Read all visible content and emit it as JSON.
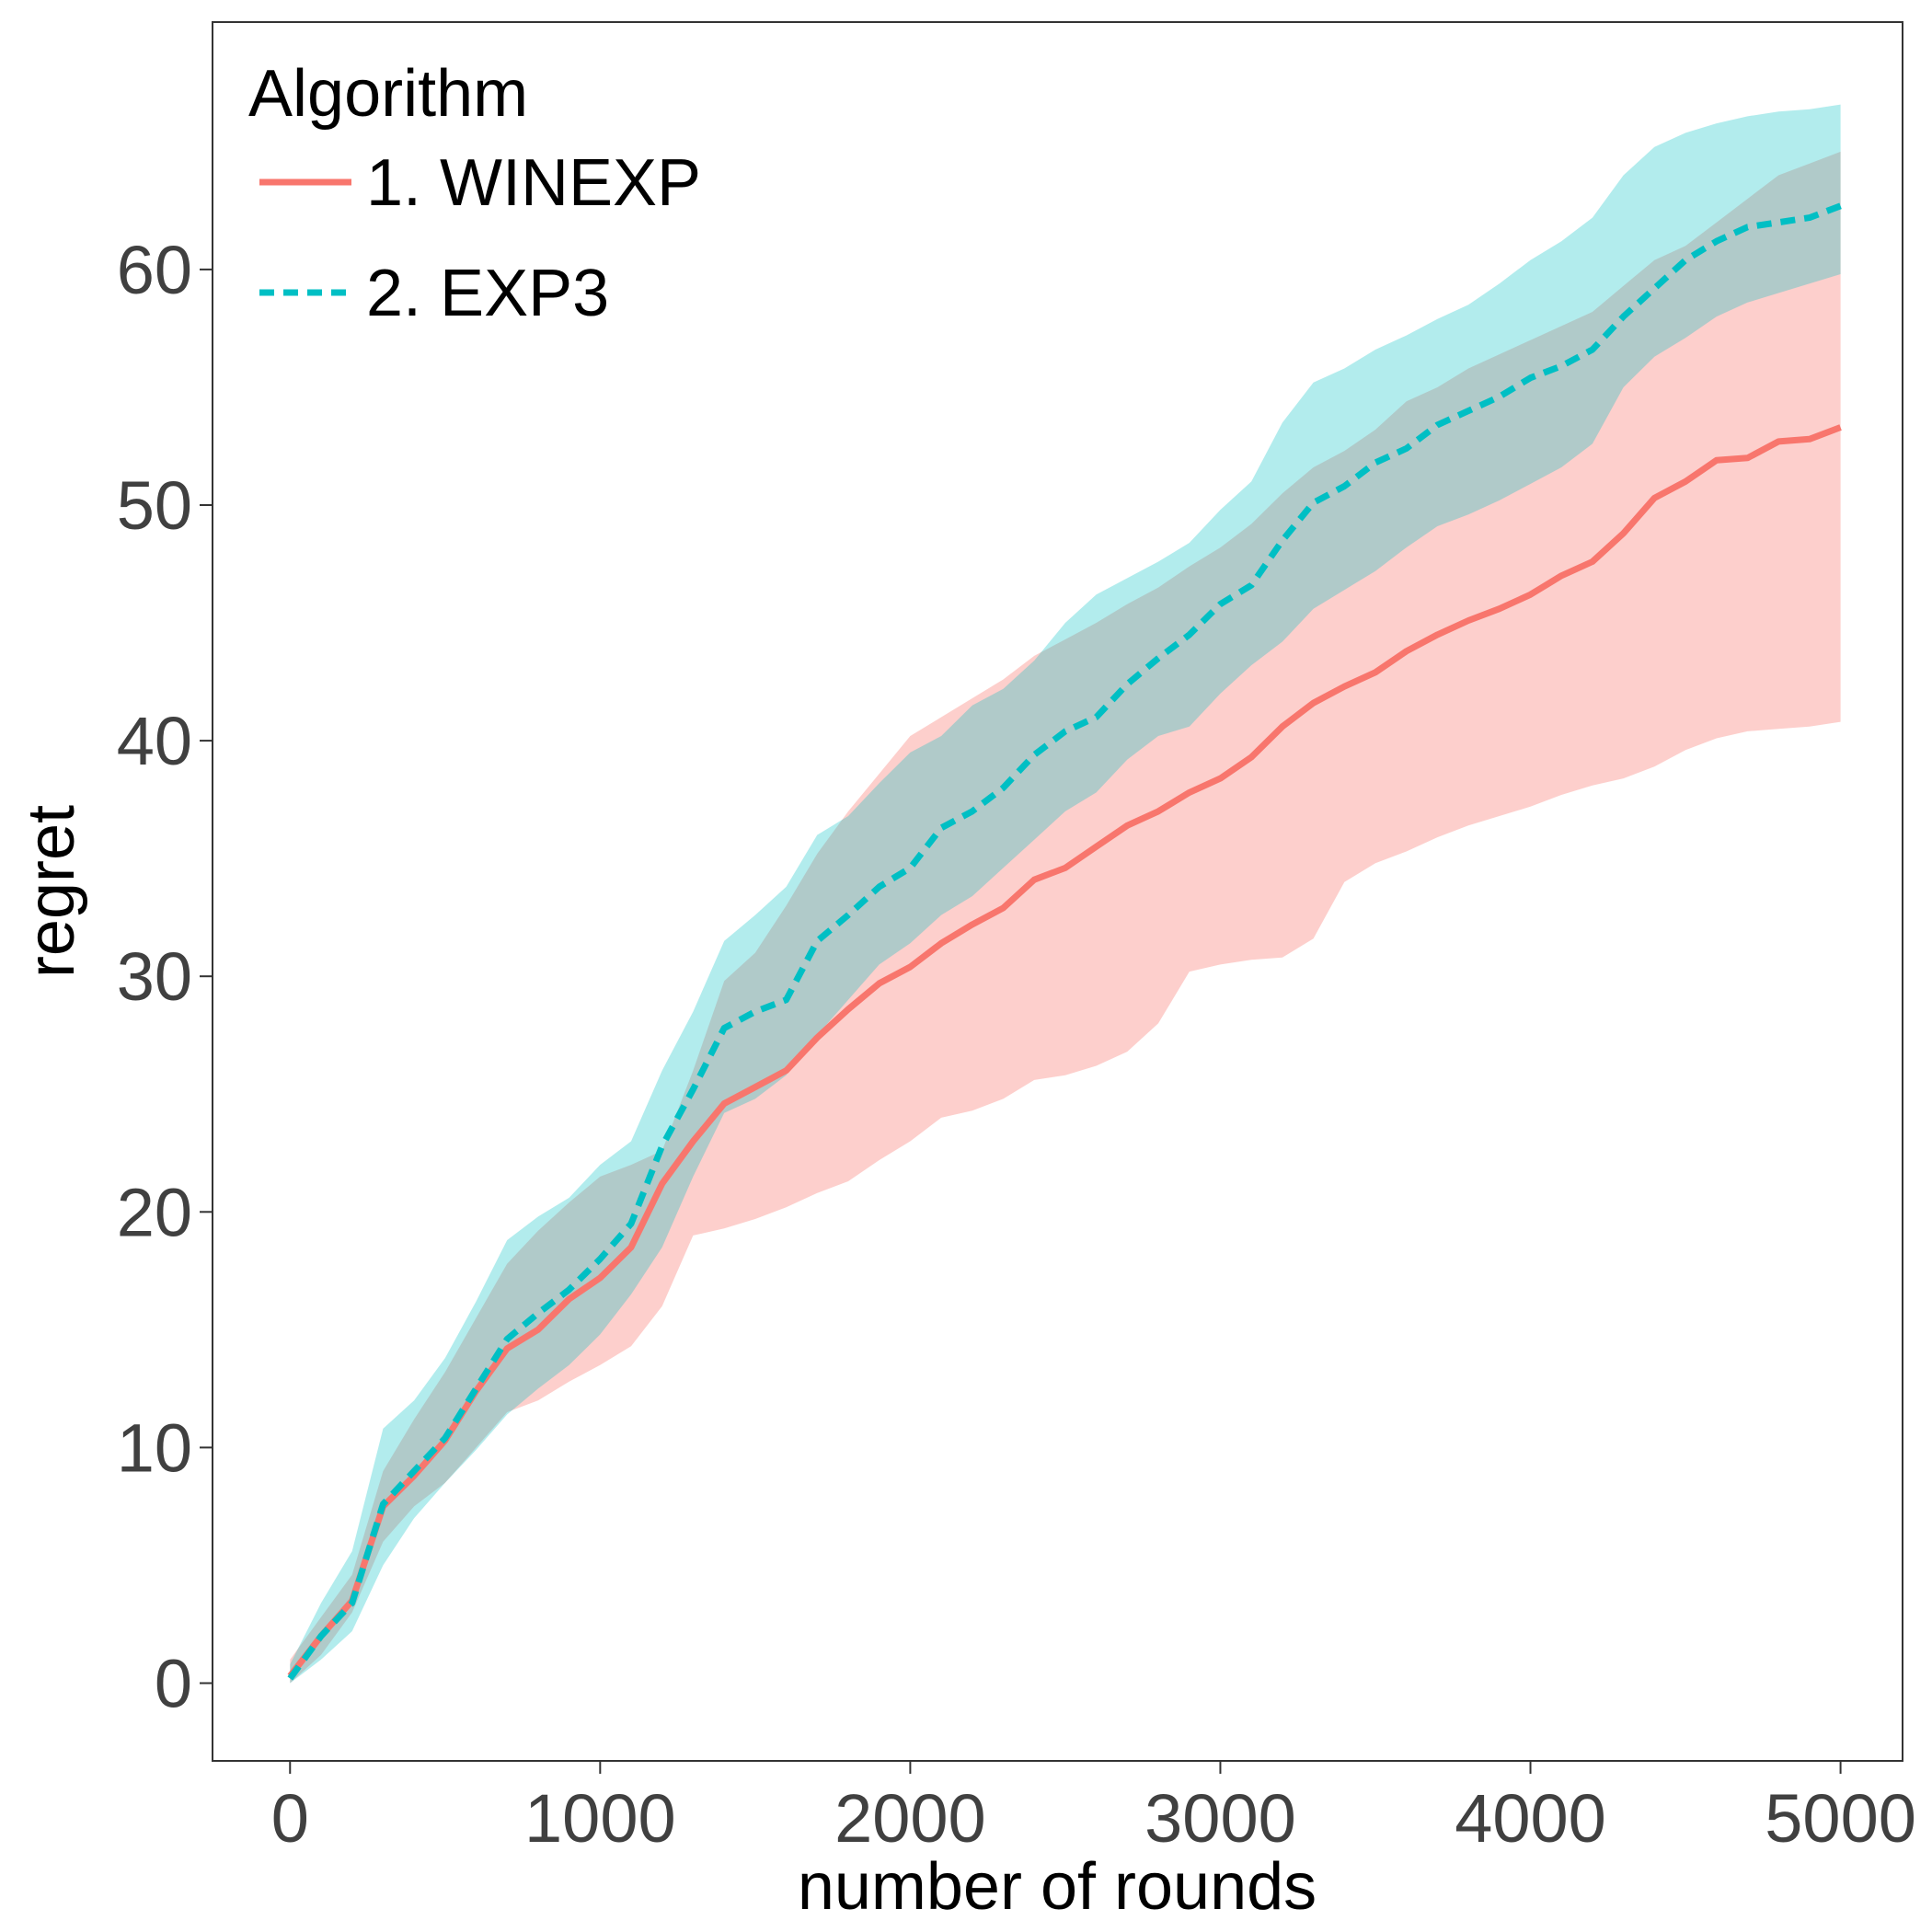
{
  "chart_data": {
    "type": "line",
    "title": "",
    "xlabel": "number of rounds",
    "ylabel": "regret",
    "xlim": [
      -250,
      5200
    ],
    "ylim": [
      -3.3,
      70.5
    ],
    "xticks": [
      0,
      1000,
      2000,
      3000,
      4000,
      5000
    ],
    "yticks": [
      0,
      10,
      20,
      30,
      40,
      50,
      60
    ],
    "grid": false,
    "legend": {
      "title": "Algorithm",
      "placement": "top-left"
    },
    "x": [
      0,
      100,
      200,
      300,
      400,
      500,
      600,
      700,
      800,
      900,
      1000,
      1100,
      1200,
      1300,
      1400,
      1500,
      1600,
      1700,
      1800,
      1900,
      2000,
      2100,
      2200,
      2300,
      2400,
      2500,
      2600,
      2700,
      2800,
      2900,
      3000,
      3100,
      3200,
      3300,
      3400,
      3500,
      3600,
      3700,
      3800,
      3900,
      4000,
      4100,
      4200,
      4300,
      4400,
      4500,
      4600,
      4700,
      4800,
      4900,
      5000
    ],
    "series": [
      {
        "name": "1. WINEXP",
        "color": "#F8766D",
        "line_style": "solid",
        "values": [
          0.3,
          2.0,
          3.5,
          7.5,
          8.8,
          10.3,
          12.4,
          14.2,
          15.0,
          16.3,
          17.2,
          18.5,
          21.2,
          23.0,
          24.6,
          25.3,
          26.0,
          27.4,
          28.6,
          29.7,
          30.4,
          31.4,
          32.2,
          32.9,
          34.1,
          34.6,
          35.5,
          36.4,
          37.0,
          37.8,
          38.4,
          39.3,
          40.6,
          41.6,
          42.3,
          42.9,
          43.8,
          44.5,
          45.1,
          45.6,
          46.2,
          47.0,
          47.6,
          48.8,
          50.3,
          51.0,
          51.9,
          52.0,
          52.7,
          52.8,
          53.3
        ],
        "lower": [
          0.0,
          1.2,
          3.0,
          6.0,
          7.5,
          8.5,
          10.0,
          11.5,
          12.0,
          12.8,
          13.5,
          14.3,
          16.0,
          19.0,
          19.3,
          19.7,
          20.2,
          20.8,
          21.3,
          22.2,
          23.0,
          24.0,
          24.3,
          24.8,
          25.6,
          25.8,
          26.2,
          26.8,
          28.0,
          30.2,
          30.5,
          30.7,
          30.8,
          31.6,
          34.0,
          34.8,
          35.3,
          35.9,
          36.4,
          36.8,
          37.2,
          37.7,
          38.1,
          38.4,
          38.9,
          39.6,
          40.1,
          40.4,
          40.5,
          40.6,
          40.8
        ],
        "upper": [
          1.0,
          2.8,
          4.6,
          9.0,
          11.2,
          13.2,
          15.5,
          17.8,
          19.2,
          20.4,
          21.5,
          22.0,
          22.6,
          26.0,
          29.8,
          31.0,
          33.0,
          35.2,
          37.0,
          38.6,
          40.2,
          41.0,
          41.8,
          42.6,
          43.6,
          44.3,
          45.0,
          45.8,
          46.5,
          47.4,
          48.2,
          49.2,
          50.5,
          51.6,
          52.3,
          53.2,
          54.4,
          55.0,
          55.8,
          56.4,
          57.0,
          57.6,
          58.2,
          59.3,
          60.4,
          61.0,
          62.0,
          63.0,
          64.0,
          64.5,
          65.0
        ]
      },
      {
        "name": "2. EXP3",
        "color": "#00BFC4",
        "line_style": "dashed",
        "values": [
          0.2,
          2.0,
          3.4,
          7.6,
          9.0,
          10.4,
          12.5,
          14.6,
          15.7,
          16.7,
          18.0,
          19.5,
          22.8,
          25.2,
          27.8,
          28.5,
          29.0,
          31.5,
          32.6,
          33.8,
          34.6,
          36.3,
          37.0,
          38.0,
          39.4,
          40.4,
          41.0,
          42.4,
          43.5,
          44.5,
          45.8,
          46.6,
          48.5,
          50.1,
          50.8,
          51.8,
          52.4,
          53.4,
          54.0,
          54.6,
          55.4,
          55.9,
          56.6,
          58.0,
          59.2,
          60.4,
          61.2,
          61.8,
          62.0,
          62.2,
          62.7
        ],
        "lower": [
          0.0,
          1.0,
          2.2,
          5.0,
          7.0,
          8.5,
          9.9,
          11.4,
          12.5,
          13.5,
          14.8,
          16.5,
          18.5,
          21.5,
          24.2,
          24.8,
          25.8,
          27.5,
          29.0,
          30.5,
          31.4,
          32.6,
          33.4,
          34.6,
          35.8,
          37.0,
          37.8,
          39.2,
          40.2,
          40.6,
          42.0,
          43.2,
          44.2,
          45.6,
          46.4,
          47.2,
          48.2,
          49.1,
          49.6,
          50.2,
          50.9,
          51.6,
          52.6,
          55.0,
          56.3,
          57.1,
          58.0,
          58.6,
          59.0,
          59.4,
          59.8
        ],
        "upper": [
          0.8,
          3.4,
          5.6,
          10.8,
          12.0,
          13.8,
          16.2,
          18.8,
          19.8,
          20.6,
          22.0,
          23.0,
          26.0,
          28.5,
          31.5,
          32.6,
          33.8,
          36.0,
          36.8,
          38.2,
          39.5,
          40.2,
          41.5,
          42.2,
          43.4,
          45.0,
          46.2,
          46.9,
          47.6,
          48.4,
          49.8,
          51.0,
          53.5,
          55.2,
          55.8,
          56.6,
          57.2,
          57.9,
          58.5,
          59.4,
          60.4,
          61.2,
          62.2,
          64.0,
          65.2,
          65.8,
          66.2,
          66.5,
          66.7,
          66.8,
          67.0
        ]
      }
    ]
  }
}
